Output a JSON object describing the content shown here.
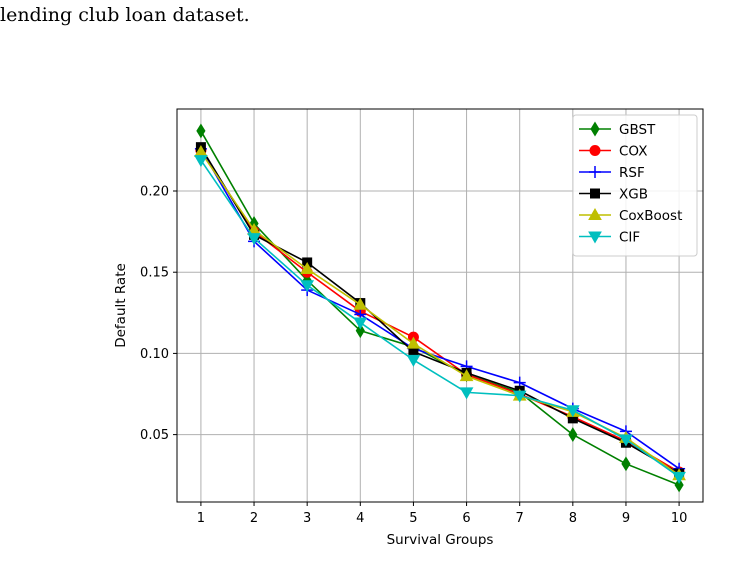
{
  "caption": "lending club loan dataset.",
  "chart_data": {
    "type": "line",
    "title": "",
    "xlabel": "Survival Groups",
    "ylabel": "Default Rate",
    "x": [
      1,
      2,
      3,
      4,
      5,
      6,
      7,
      8,
      9,
      10
    ],
    "xticks": [
      "1",
      "2",
      "3",
      "4",
      "5",
      "6",
      "7",
      "8",
      "9",
      "10"
    ],
    "yticks": [
      "0.05",
      "0.10",
      "0.15",
      "0.20"
    ],
    "ytick_values": [
      0.05,
      0.1,
      0.15,
      0.2
    ],
    "xlim": [
      0.55,
      10.45
    ],
    "ylim": [
      0.0085,
      0.2505
    ],
    "grid": true,
    "legend_position": "upper right",
    "series": [
      {
        "name": "GBST",
        "color": "#008000",
        "marker": "diamond",
        "values": [
          0.237,
          0.18,
          0.145,
          0.114,
          0.104,
          0.087,
          0.076,
          0.05,
          0.032,
          0.019
        ]
      },
      {
        "name": "COX",
        "color": "#ff0000",
        "marker": "circle",
        "values": [
          0.225,
          0.175,
          0.15,
          0.126,
          0.11,
          0.087,
          0.075,
          0.061,
          0.046,
          0.027
        ]
      },
      {
        "name": "RSF",
        "color": "#0000ff",
        "marker": "plus",
        "values": [
          0.226,
          0.169,
          0.139,
          0.124,
          0.103,
          0.092,
          0.082,
          0.066,
          0.052,
          0.029
        ]
      },
      {
        "name": "XGB",
        "color": "#000000",
        "marker": "square",
        "values": [
          0.227,
          0.173,
          0.156,
          0.131,
          0.101,
          0.088,
          0.077,
          0.06,
          0.045,
          0.026
        ]
      },
      {
        "name": "CoxBoost",
        "color": "#bfbf00",
        "marker": "triangle-up",
        "values": [
          0.224,
          0.176,
          0.152,
          0.13,
          0.106,
          0.086,
          0.074,
          0.064,
          0.048,
          0.025
        ]
      },
      {
        "name": "CIF",
        "color": "#00bfbf",
        "marker": "triangle-down",
        "values": [
          0.219,
          0.171,
          0.142,
          0.119,
          0.096,
          0.076,
          0.074,
          0.065,
          0.047,
          0.024
        ]
      }
    ]
  }
}
